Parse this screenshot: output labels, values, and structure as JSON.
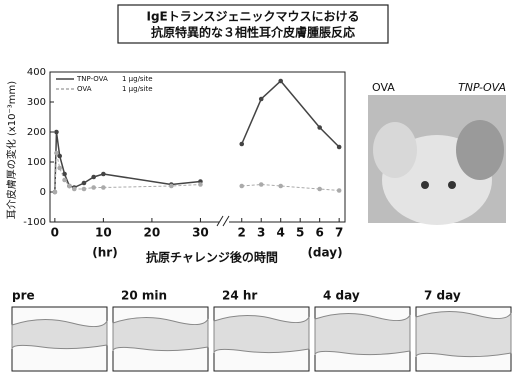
{
  "title": [
    "IgEトランスジェニックマウスにおける",
    "抗原特異的な３相性耳介皮膚腫脹反応"
  ],
  "x_title": "抗原チャレンジ後の時間",
  "photo": {
    "labels": [
      "OVA",
      "TNP-OVA"
    ]
  },
  "panels": [
    "pre",
    "20 min",
    "24 hr",
    "4 day",
    "7 day"
  ],
  "chart_data": [
    {
      "type": "line",
      "y_label": "耳介皮膚厚の変化 (x10⁻³mm)",
      "x_label": "(hr)",
      "xlim": [
        -1,
        33
      ],
      "xticks": [
        0,
        10,
        20,
        30
      ],
      "ylim": [
        -100,
        400
      ],
      "yticks": [
        -100,
        0,
        100,
        200,
        300,
        400
      ],
      "series": [
        {
          "name": "TNP-OVA",
          "dose": "1 μg/site",
          "color": "#444",
          "x": [
            0,
            0.33,
            1,
            2,
            3,
            4,
            6,
            8,
            10,
            24,
            30
          ],
          "values": [
            0,
            200,
            120,
            60,
            20,
            15,
            30,
            50,
            60,
            25,
            35
          ]
        },
        {
          "name": "OVA",
          "dose": "1 μg/site",
          "color": "#aaa",
          "x": [
            0,
            0.33,
            1,
            2,
            3,
            4,
            6,
            8,
            10,
            24,
            30
          ],
          "values": [
            0,
            130,
            80,
            40,
            20,
            10,
            10,
            15,
            15,
            20,
            25
          ]
        }
      ]
    },
    {
      "type": "line",
      "x_label": "(day)",
      "xlim": [
        1.5,
        7.3
      ],
      "xticks": [
        2,
        3,
        4,
        5,
        6,
        7
      ],
      "ylim": [
        -100,
        400
      ],
      "series": [
        {
          "color": "#444",
          "x": [
            2,
            3,
            4,
            6,
            7
          ],
          "values": [
            160,
            310,
            370,
            215,
            150
          ]
        },
        {
          "color": "#aaa",
          "x": [
            2,
            3,
            4,
            6,
            7
          ],
          "values": [
            20,
            25,
            20,
            10,
            5
          ]
        }
      ]
    }
  ]
}
